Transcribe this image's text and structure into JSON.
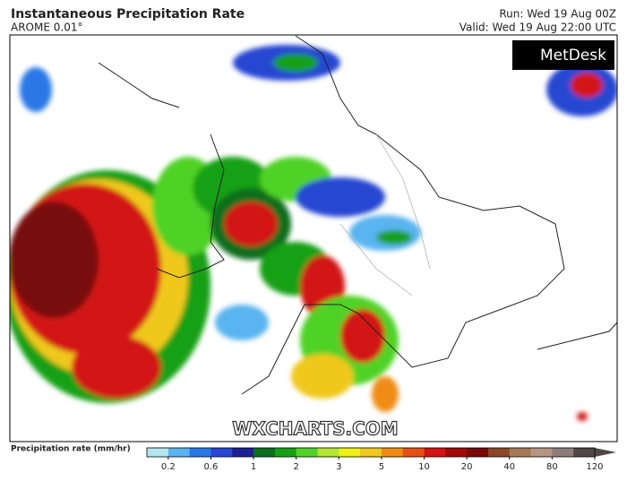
{
  "header": {
    "title": "Instantaneous Precipitation Rate",
    "model": "AROME 0.01°",
    "run": "Run: Wed 19 Aug 00Z",
    "valid": "Valid: Wed 19 Aug 22:00 UTC"
  },
  "logo": "MetDesk",
  "watermark": "WXCHARTS.COM",
  "colorbar": {
    "label": "Precipitation rate (mm/hr)",
    "ticks": [
      0.2,
      0.6,
      1,
      2,
      3,
      5,
      10,
      20,
      40,
      80,
      120
    ],
    "colors": [
      "#b4e6ee",
      "#5ab4f0",
      "#2a78e6",
      "#2846d2",
      "#1c1e96",
      "#0a6e1e",
      "#14a014",
      "#50d228",
      "#b4e632",
      "#f0f014",
      "#f0c81e",
      "#f08c14",
      "#e65014",
      "#d21414",
      "#a00a0a",
      "#780a0a",
      "#8c4628",
      "#a8785a",
      "#b49682",
      "#8c7d78",
      "#504646"
    ]
  }
}
